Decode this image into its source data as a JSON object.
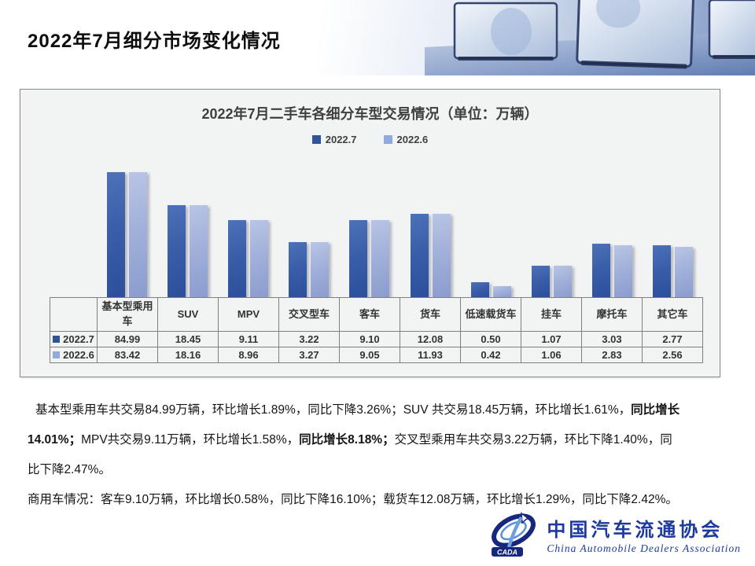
{
  "page_title": "2022年7月细分市场变化情况",
  "chart": {
    "title": "2022年7月二手车各细分车型交易情况（单位：万辆）"
  },
  "chart_data": {
    "type": "bar",
    "title": "2022年7月二手车各细分车型交易情况（单位：万辆）",
    "unit": "万辆",
    "categories": [
      "基本型乘用车",
      "SUV",
      "MPV",
      "交叉型车",
      "客车",
      "货车",
      "低速载货车",
      "挂车",
      "摩托车",
      "其它车"
    ],
    "series": [
      {
        "name": "2022.7",
        "color": "#2f5597",
        "values": [
          84.99,
          18.45,
          9.11,
          3.22,
          9.1,
          12.08,
          0.5,
          1.07,
          3.03,
          2.77
        ],
        "display": [
          "84.99",
          "18.45",
          "9.11",
          "3.22",
          "9.10",
          "12.08",
          "0.50",
          "1.07",
          "3.03",
          "2.77"
        ]
      },
      {
        "name": "2022.6",
        "color": "#8faadc",
        "values": [
          83.42,
          18.16,
          8.96,
          3.27,
          9.05,
          11.93,
          0.42,
          1.06,
          2.83,
          2.56
        ],
        "display": [
          "83.42",
          "18.16",
          "8.96",
          "3.27",
          "9.05",
          "11.93",
          "0.42",
          "1.06",
          "2.83",
          "2.56"
        ]
      }
    ],
    "legend_position": "top",
    "yscale": "log",
    "grid": false,
    "data_table_shown": true
  },
  "analysis": {
    "lines": [
      [
        {
          "t": "基本型乘用车共交易84.99万辆，环比增长1.89%，同比下降3.26%；SUV 共交易18.45万辆，环比增长1.61%，",
          "b": false
        },
        {
          "t": "同比增长",
          "b": true
        }
      ],
      [
        {
          "t": "14.01%；",
          "b": true
        },
        {
          "t": "MPV共交易9.11万辆，环比增长1.58%，",
          "b": false
        },
        {
          "t": "同比增长8.18%；",
          "b": true
        },
        {
          "t": "交叉型乘用车共交易3.22万辆，环比下降1.40%，同",
          "b": false
        }
      ],
      [
        {
          "t": "比下降2.47%。",
          "b": false
        }
      ],
      [
        {
          "t": "商用车情况：客车9.10万辆，环比增长0.58%，同比下降16.10%；载货车12.08万辆，环比增长1.29%，同比下降2.42%。",
          "b": false
        }
      ]
    ]
  },
  "logo": {
    "acronym": "CADA",
    "cn": "中国汽车流通协会",
    "en": "China Automobile Dealers Association"
  },
  "colors": {
    "series_dark": "#2f5597",
    "series_light": "#8faadc",
    "card_bg": "#f2f3f3",
    "logo_blue": "#1d3aa0"
  }
}
